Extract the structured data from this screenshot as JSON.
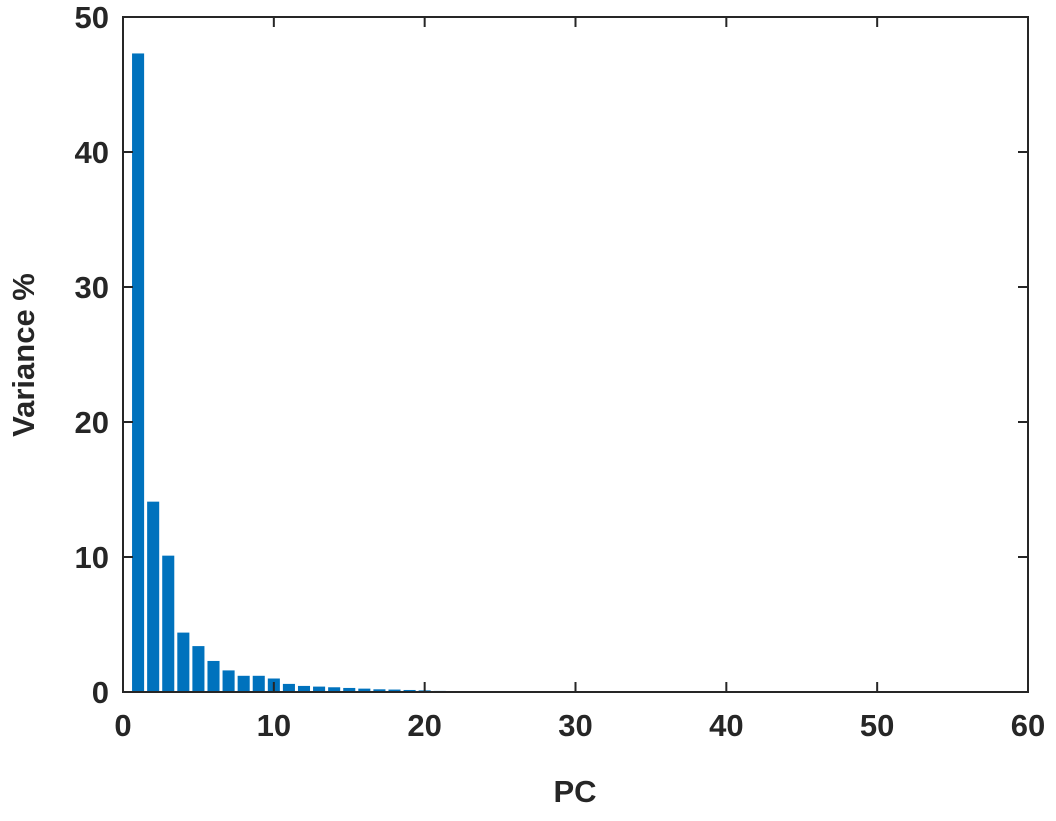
{
  "chart_data": {
    "type": "bar",
    "x_label": "PC",
    "y_label": "Variance %",
    "x": [
      1,
      2,
      3,
      4,
      5,
      6,
      7,
      8,
      9,
      10,
      11,
      12,
      13,
      14,
      15,
      16,
      17,
      18,
      19,
      20,
      21,
      22
    ],
    "values": [
      47.3,
      14.1,
      10.1,
      4.4,
      3.4,
      2.3,
      1.6,
      1.2,
      1.2,
      1.0,
      0.6,
      0.45,
      0.4,
      0.35,
      0.3,
      0.25,
      0.2,
      0.18,
      0.15,
      0.12,
      0.08,
      0.05
    ],
    "color": "#0072bd",
    "xlim": [
      0,
      60
    ],
    "xticks": [
      0,
      10,
      20,
      30,
      40,
      50,
      60
    ],
    "ylim": [
      0,
      50
    ],
    "yticks": [
      0,
      10,
      20,
      30,
      40,
      50
    ],
    "grid": false
  }
}
